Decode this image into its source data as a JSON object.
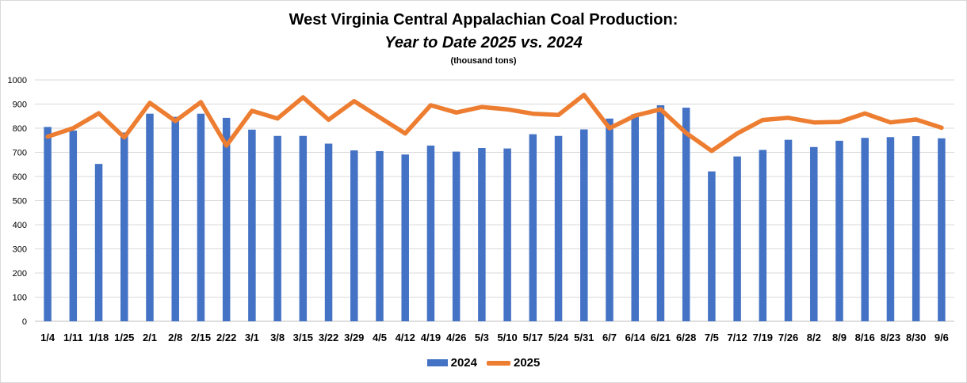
{
  "chart_data": {
    "type": "bar",
    "title": "West Virginia Central Appalachian Coal Production:",
    "subtitle": "Year to Date 2025 vs. 2024",
    "unit_label": "(thousand tons)",
    "ylim": [
      0,
      1000
    ],
    "yticks": [
      0,
      100,
      200,
      300,
      400,
      500,
      600,
      700,
      800,
      900,
      1000
    ],
    "grid": true,
    "legend_position": "bottom",
    "categories": [
      "1/4",
      "1/11",
      "1/18",
      "1/25",
      "2/1",
      "2/8",
      "2/15",
      "2/22",
      "3/1",
      "3/8",
      "3/15",
      "3/22",
      "3/29",
      "4/5",
      "4/12",
      "4/19",
      "4/26",
      "5/3",
      "5/10",
      "5/17",
      "5/24",
      "5/31",
      "6/7",
      "6/14",
      "6/21",
      "6/28",
      "7/5",
      "7/12",
      "7/19",
      "7/26",
      "8/2",
      "8/9",
      "8/16",
      "8/23",
      "8/30",
      "9/6"
    ],
    "series": [
      {
        "name": "2024",
        "type": "bar",
        "color": "#4472C4",
        "values": [
          805,
          790,
          652,
          782,
          860,
          847,
          860,
          843,
          794,
          768,
          768,
          736,
          708,
          705,
          691,
          728,
          703,
          718,
          716,
          775,
          768,
          795,
          840,
          858,
          895,
          885,
          621,
          683,
          710,
          752,
          722,
          748,
          760,
          763,
          767,
          758
        ]
      },
      {
        "name": "2025",
        "type": "line",
        "color": "#ED7D31",
        "values": [
          765,
          800,
          862,
          762,
          905,
          830,
          908,
          728,
          872,
          840,
          928,
          835,
          912,
          845,
          778,
          895,
          865,
          888,
          878,
          860,
          855,
          938,
          800,
          852,
          878,
          780,
          706,
          778,
          834,
          843,
          824,
          826,
          861,
          824,
          836,
          802
        ]
      }
    ]
  }
}
